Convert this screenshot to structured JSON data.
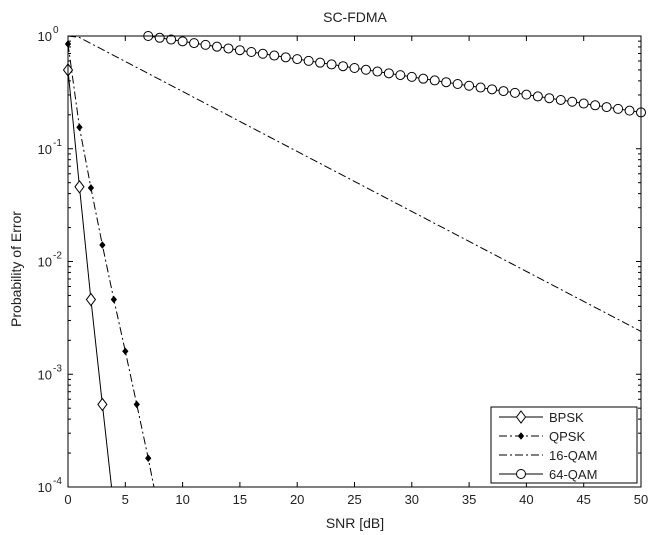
{
  "chart_data": {
    "type": "line",
    "title": "SC-FDMA",
    "xlabel": "SNR [dB]",
    "ylabel": "Probability of Error",
    "xlim": [
      0,
      50
    ],
    "ylim": [
      0.0001,
      1
    ],
    "yscale": "log",
    "grid": false,
    "legend_position": "bottom-right",
    "x_ticks": [
      0,
      5,
      10,
      15,
      20,
      25,
      30,
      35,
      40,
      45,
      50
    ],
    "x_tick_labels": [
      "0",
      "5",
      "10",
      "15",
      "20",
      "25",
      "30",
      "35",
      "40",
      "45",
      "50"
    ],
    "y_ticks": [
      1,
      0.1,
      0.01,
      0.001,
      0.0001
    ],
    "y_tick_labels": [
      {
        "base": "10",
        "exp": "0"
      },
      {
        "base": "10",
        "exp": "-1"
      },
      {
        "base": "10",
        "exp": "-2"
      },
      {
        "base": "10",
        "exp": "-3"
      },
      {
        "base": "10",
        "exp": "-4"
      }
    ],
    "series": [
      {
        "name": "BPSK",
        "line_style": "solid",
        "marker": "diamond",
        "color": "#000000",
        "x": [
          0,
          1,
          2,
          3,
          3.8
        ],
        "y": [
          0.5,
          0.046,
          0.0046,
          0.00054,
          0.0001
        ]
      },
      {
        "name": "QPSK",
        "line_style": "dashdot",
        "marker": "dot",
        "color": "#000000",
        "x": [
          0,
          1,
          2,
          3,
          4,
          5,
          6,
          7,
          7.5
        ],
        "y": [
          0.85,
          0.155,
          0.045,
          0.014,
          0.0046,
          0.0016,
          0.00054,
          0.00018,
          0.0001
        ]
      },
      {
        "name": "16-QAM",
        "line_style": "dashdot",
        "marker": "none",
        "color": "#000000",
        "x": [
          0,
          1,
          50
        ],
        "y": [
          1,
          0.97,
          0.0024
        ]
      },
      {
        "name": "64-QAM",
        "line_style": "solid",
        "marker": "circle",
        "color": "#000000",
        "x": [
          7,
          50
        ],
        "y": [
          1,
          0.21
        ],
        "marker_step": 1
      }
    ]
  }
}
